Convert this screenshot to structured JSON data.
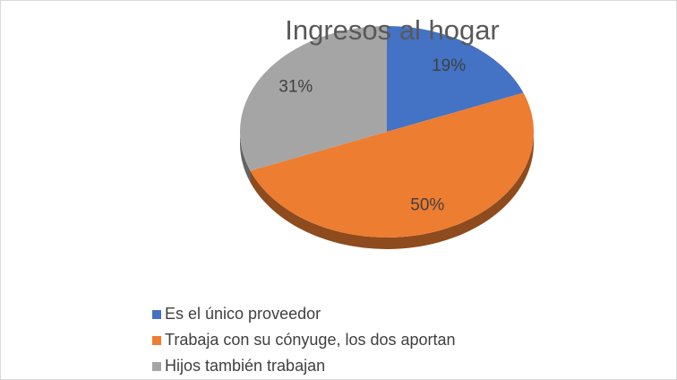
{
  "chart_data": {
    "type": "pie",
    "title": "Ingresos al hogar",
    "categories": [
      "Es el único proveedor",
      "Trabaja con su cónyuge, los dos aportan",
      "Hijos también trabajan"
    ],
    "values": [
      19,
      50,
      31
    ],
    "value_labels": [
      "19%",
      "50%",
      "31%"
    ],
    "colors": [
      "#4472c4",
      "#ed7d31",
      "#a5a5a5"
    ]
  }
}
